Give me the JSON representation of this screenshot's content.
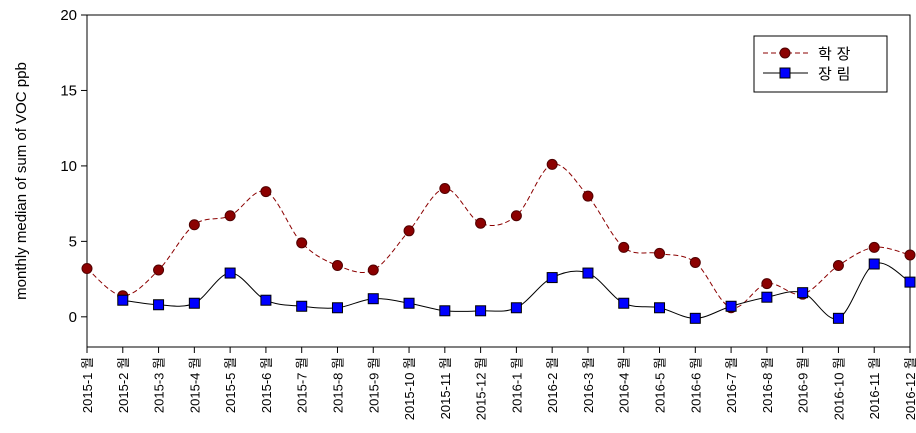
{
  "chart_data": {
    "type": "line",
    "ylabel": "monthly median of sum of VOC ppb",
    "ylim": [
      -2,
      20
    ],
    "yticks": [
      0,
      5,
      10,
      15,
      20
    ],
    "categories": [
      "2015-1 월",
      "2015-2 월",
      "2015-3 월",
      "2015-4 월",
      "2015-5 월",
      "2015-6 월",
      "2015-7 월",
      "2015-8 월",
      "2015-9 월",
      "2015-10 월",
      "2015-11 월",
      "2015-12 월",
      "2016-1 월",
      "2016-2 월",
      "2016-3 월",
      "2016-4 월",
      "2016-5 월",
      "2016-6 월",
      "2016-7 월",
      "2016-8 월",
      "2016-9 월",
      "2016-10 월",
      "2016-11 월",
      "2016-12 월"
    ],
    "series": [
      {
        "name": "학 장",
        "color": "#8b0000",
        "marker": "circle",
        "line_style": "dashed",
        "values": [
          3.2,
          1.4,
          3.1,
          6.1,
          6.7,
          8.3,
          4.9,
          3.4,
          3.1,
          5.7,
          8.5,
          6.2,
          6.7,
          10.1,
          8.0,
          4.6,
          4.2,
          3.6,
          0.6,
          2.2,
          1.5,
          3.4,
          4.6,
          4.1
        ]
      },
      {
        "name": "장 림",
        "color": "#0000ff",
        "marker": "square",
        "line_style": "solid",
        "values": [
          null,
          1.1,
          0.8,
          0.9,
          2.9,
          1.1,
          0.7,
          0.6,
          1.2,
          0.9,
          0.4,
          0.4,
          0.6,
          2.6,
          2.9,
          0.9,
          0.6,
          -0.1,
          0.7,
          1.3,
          1.6,
          -0.1,
          3.5,
          2.3
        ]
      }
    ],
    "legend_position": "top-right",
    "grid": false
  }
}
